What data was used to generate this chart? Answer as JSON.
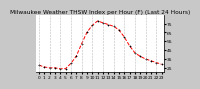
{
  "title": "Milwaukee Weather THSW Index per Hour (F) (Last 24 Hours)",
  "hours": [
    0,
    1,
    2,
    3,
    4,
    5,
    6,
    7,
    8,
    9,
    10,
    11,
    12,
    13,
    14,
    15,
    16,
    17,
    18,
    19,
    20,
    21,
    22,
    23
  ],
  "values": [
    28,
    26,
    25,
    25,
    24,
    24,
    30,
    38,
    52,
    65,
    73,
    78,
    76,
    74,
    72,
    68,
    60,
    50,
    42,
    38,
    35,
    33,
    31,
    29
  ],
  "line_color": "#ff0000",
  "line_style": "--",
  "marker": "+",
  "marker_color": "#000000",
  "bg_color": "#c8c8c8",
  "plot_bg_color": "#ffffff",
  "grid_color": "#aaaaaa",
  "grid_style": "--",
  "ylim": [
    20,
    85
  ],
  "yticks": [
    25,
    35,
    45,
    55,
    65,
    75
  ],
  "title_fontsize": 4.2,
  "tick_fontsize": 3.2,
  "linewidth": 0.7,
  "markersize": 2.0,
  "markeredgewidth": 0.5
}
